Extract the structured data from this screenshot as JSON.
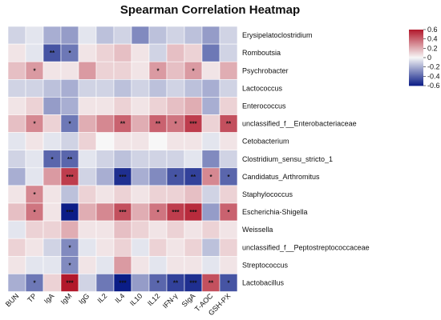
{
  "chart_data": {
    "type": "heatmap",
    "title": "Spearman Correlation Heatmap",
    "columns": [
      "BUN",
      "TP",
      "IgA",
      "IgM",
      "IgG",
      "IL2",
      "IL4",
      "IL10",
      "IL12",
      "IFN-γ",
      "SIgA",
      "T-AOC",
      "GSH-PX"
    ],
    "rows": [
      "Erysipelatoclostridium",
      "Romboutsia",
      "Psychrobacter",
      "Lactococcus",
      "Enterococcus",
      "unclassified_f__Enterobacteriaceae",
      "Cetobacterium",
      "Clostridium_sensu_stricto_1",
      "Candidatus_Arthromitus",
      "Staphylococcus",
      "Escherichia-Shigella",
      "Weissella",
      "unclassified_f__Peptostreptococcaceae",
      "Streptococcus",
      "Lactobacillus"
    ],
    "values": [
      [
        -0.1,
        -0.05,
        -0.2,
        -0.25,
        -0.05,
        -0.15,
        -0.1,
        -0.3,
        -0.15,
        -0.1,
        -0.15,
        -0.25,
        -0.1
      ],
      [
        0.05,
        -0.05,
        -0.45,
        -0.35,
        0.05,
        0.1,
        0.15,
        0.05,
        -0.1,
        0.15,
        0.1,
        -0.35,
        -0.1
      ],
      [
        0.15,
        0.25,
        0.05,
        0.05,
        0.25,
        0.1,
        0.1,
        0.05,
        0.25,
        0.15,
        0.25,
        0.05,
        0.2
      ],
      [
        -0.1,
        -0.1,
        -0.15,
        -0.2,
        -0.1,
        -0.1,
        -0.15,
        -0.1,
        -0.15,
        -0.1,
        -0.15,
        -0.2,
        -0.1
      ],
      [
        0.05,
        0.1,
        -0.25,
        -0.2,
        0.05,
        0.05,
        0.1,
        0.05,
        0.1,
        0.15,
        0.2,
        -0.2,
        0.1
      ],
      [
        0.15,
        0.3,
        0.1,
        -0.35,
        0.2,
        0.3,
        0.4,
        0.2,
        0.4,
        0.35,
        0.5,
        0.1,
        0.45
      ],
      [
        -0.05,
        0.05,
        -0.05,
        -0.1,
        0.1,
        0.0,
        0.05,
        0.05,
        0.0,
        0.05,
        0.05,
        -0.05,
        0.05
      ],
      [
        -0.1,
        -0.05,
        -0.4,
        -0.4,
        -0.05,
        -0.1,
        -0.15,
        -0.1,
        -0.1,
        -0.1,
        -0.05,
        -0.3,
        -0.1
      ],
      [
        -0.2,
        -0.05,
        0.25,
        0.5,
        -0.1,
        -0.2,
        -0.55,
        -0.2,
        -0.3,
        -0.45,
        -0.5,
        0.3,
        -0.4
      ],
      [
        0.05,
        0.3,
        0.05,
        -0.15,
        0.1,
        0.05,
        0.1,
        0.05,
        0.1,
        0.1,
        0.15,
        -0.1,
        0.1
      ],
      [
        0.15,
        0.35,
        0.05,
        -0.6,
        0.2,
        0.3,
        0.45,
        0.2,
        0.35,
        0.5,
        0.55,
        -0.25,
        0.4
      ],
      [
        -0.05,
        0.1,
        0.1,
        0.2,
        0.05,
        0.05,
        0.15,
        0.1,
        0.05,
        0.1,
        0.05,
        0.1,
        0.05
      ],
      [
        0.1,
        0.05,
        -0.1,
        -0.3,
        -0.05,
        0.05,
        0.1,
        -0.05,
        0.1,
        0.05,
        0.1,
        -0.15,
        0.1
      ],
      [
        0.05,
        -0.05,
        -0.05,
        -0.3,
        0.05,
        -0.05,
        0.25,
        0.05,
        -0.05,
        0.05,
        0.05,
        -0.05,
        0.05
      ],
      [
        -0.2,
        -0.35,
        0.1,
        0.6,
        -0.1,
        -0.35,
        -0.6,
        -0.25,
        -0.4,
        -0.5,
        -0.55,
        0.45,
        -0.45
      ]
    ],
    "significance": [
      [
        "",
        "",
        "",
        "",
        "",
        "",
        "",
        "",
        "",
        "",
        "",
        "",
        ""
      ],
      [
        "",
        "",
        "**",
        "*",
        "",
        "",
        "",
        "",
        "",
        "",
        "",
        "",
        ""
      ],
      [
        "",
        "*",
        "",
        "",
        "",
        "",
        "",
        "",
        "*",
        "",
        "*",
        "",
        ""
      ],
      [
        "",
        "",
        "",
        "",
        "",
        "",
        "",
        "",
        "",
        "",
        "",
        "",
        ""
      ],
      [
        "",
        "",
        "",
        "",
        "",
        "",
        "",
        "",
        "",
        "",
        "",
        "",
        ""
      ],
      [
        "",
        "*",
        "",
        "*",
        "",
        "",
        "**",
        "",
        "**",
        "*",
        "***",
        "",
        "**"
      ],
      [
        "",
        "",
        "",
        "",
        "",
        "",
        "",
        "",
        "",
        "",
        "",
        "",
        ""
      ],
      [
        "",
        "",
        "*",
        "**",
        "",
        "",
        "",
        "",
        "",
        "",
        "",
        "",
        ""
      ],
      [
        "",
        "",
        "",
        "***",
        "",
        "",
        "***",
        "",
        "",
        "*",
        "**",
        "*",
        "*"
      ],
      [
        "",
        "*",
        "",
        "",
        "",
        "",
        "",
        "",
        "",
        "",
        "",
        "",
        ""
      ],
      [
        "",
        "*",
        "",
        "***",
        "",
        "",
        "***",
        "",
        "*",
        "***",
        "***",
        "",
        "*"
      ],
      [
        "",
        "",
        "",
        "",
        "",
        "",
        "",
        "",
        "",
        "",
        "",
        "",
        ""
      ],
      [
        "",
        "",
        "",
        "*",
        "",
        "",
        "",
        "",
        "",
        "",
        "",
        "",
        ""
      ],
      [
        "",
        "",
        "",
        "*",
        "",
        "",
        "",
        "",
        "",
        "",
        "",
        "",
        ""
      ],
      [
        "",
        "*",
        "",
        "***",
        "",
        "",
        "***",
        "",
        "*",
        "**",
        "***",
        "**",
        "*"
      ]
    ],
    "colorbar": {
      "ticks": [
        "0.6",
        "0.4",
        "0.2",
        "0",
        "-0.2",
        "-0.4",
        "-0.6"
      ],
      "tick_values": [
        0.6,
        0.4,
        0.2,
        0,
        -0.2,
        -0.4,
        -0.6
      ],
      "range": [
        -0.6,
        0.6
      ],
      "colors": {
        "positive": "#b2182b",
        "neutral": "#f7f7f7",
        "negative": "#0b1d87"
      }
    }
  }
}
